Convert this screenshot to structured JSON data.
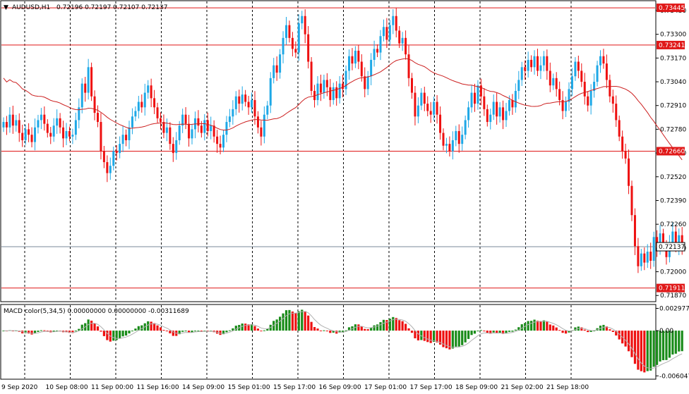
{
  "header": {
    "arrow": "▼",
    "symbol": "AUDUSD,H1",
    "ohlc": "0.72196 0.72197 0.72107 0.72137"
  },
  "macd_header": {
    "label": "MACD color(5,34,5) 0.00000000 0.00000000 -0.00311689"
  },
  "colors": {
    "bull": "#1ea8e6",
    "bear": "#ee1010",
    "ma": "#cc1f1f",
    "grid": "#000000",
    "level_line": "#e01818",
    "price_line": "#7a8a99",
    "macd_up": "#1a8c1a",
    "macd_down": "#ee1010",
    "signal": "#b0b0b0"
  },
  "chart_data": [
    {
      "type": "candlestick",
      "title": "AUDUSD,H1",
      "y_ticks": [
        "0.73430",
        "0.73300",
        "0.73170",
        "0.73040",
        "0.72910",
        "0.72780",
        "0.72650",
        "0.72520",
        "0.72390",
        "0.72260",
        "0.72130",
        "0.72000",
        "0.71870"
      ],
      "ylim": [
        0.7184,
        0.7348
      ],
      "x_tick_labels": [
        "9 Sep 2020",
        "10 Sep 08:00",
        "11 Sep 00:00",
        "11 Sep 16:00",
        "14 Sep 09:00",
        "15 Sep 01:00",
        "15 Sep 17:00",
        "16 Sep 09:00",
        "17 Sep 01:00",
        "17 Sep 17:00",
        "18 Sep 09:00",
        "21 Sep 02:00",
        "21 Sep 18:00"
      ],
      "horizontal_levels": [
        {
          "label": "0.73445",
          "value": 0.73445
        },
        {
          "label": "0.73241",
          "value": 0.73241
        },
        {
          "label": "0.72660",
          "value": 0.7266
        },
        {
          "label": "0.71911",
          "value": 0.71911
        }
      ],
      "current_price": {
        "label": "0.72137",
        "value": 0.72137
      },
      "grid": true,
      "close_series": [
        0.7282,
        0.7279,
        0.7286,
        0.728,
        0.7283,
        0.7276,
        0.7272,
        0.7278,
        0.7275,
        0.7271,
        0.7279,
        0.7283,
        0.7286,
        0.7281,
        0.7276,
        0.7274,
        0.728,
        0.7284,
        0.7279,
        0.7273,
        0.7277,
        0.7274,
        0.7275,
        0.7283,
        0.729,
        0.7303,
        0.7298,
        0.7312,
        0.7296,
        0.7287,
        0.7282,
        0.7266,
        0.726,
        0.7254,
        0.7258,
        0.7266,
        0.7265,
        0.727,
        0.7275,
        0.7272,
        0.7279,
        0.7285,
        0.7288,
        0.7293,
        0.729,
        0.7298,
        0.7302,
        0.7295,
        0.729,
        0.7284,
        0.7282,
        0.7276,
        0.7279,
        0.727,
        0.7265,
        0.7272,
        0.728,
        0.7286,
        0.7281,
        0.7273,
        0.7278,
        0.7284,
        0.728,
        0.7276,
        0.7283,
        0.7277,
        0.728,
        0.7274,
        0.727,
        0.7268,
        0.7275,
        0.7282,
        0.7285,
        0.7289,
        0.7296,
        0.7292,
        0.7297,
        0.7293,
        0.729,
        0.7294,
        0.7285,
        0.7279,
        0.7274,
        0.7286,
        0.7291,
        0.7306,
        0.7313,
        0.7309,
        0.7319,
        0.7328,
        0.7335,
        0.7328,
        0.7322,
        0.732,
        0.7336,
        0.734,
        0.733,
        0.7315,
        0.7299,
        0.7294,
        0.7303,
        0.7298,
        0.7305,
        0.7301,
        0.7294,
        0.7301,
        0.7295,
        0.7303,
        0.73,
        0.731,
        0.7318,
        0.7314,
        0.7321,
        0.7315,
        0.7307,
        0.73,
        0.7307,
        0.7316,
        0.7322,
        0.732,
        0.7329,
        0.7334,
        0.7327,
        0.7335,
        0.734,
        0.7332,
        0.7325,
        0.7328,
        0.7319,
        0.7306,
        0.7298,
        0.7285,
        0.7291,
        0.7298,
        0.7292,
        0.7288,
        0.7286,
        0.7293,
        0.7286,
        0.7276,
        0.7269,
        0.727,
        0.7266,
        0.7272,
        0.7277,
        0.727,
        0.7275,
        0.7283,
        0.729,
        0.7298,
        0.7292,
        0.7302,
        0.7296,
        0.7289,
        0.7282,
        0.7286,
        0.7293,
        0.7285,
        0.729,
        0.7283,
        0.7288,
        0.7294,
        0.729,
        0.7299,
        0.7305,
        0.7312,
        0.731,
        0.7316,
        0.7312,
        0.7318,
        0.731,
        0.7313,
        0.7318,
        0.731,
        0.7302,
        0.7306,
        0.73,
        0.7294,
        0.7288,
        0.7293,
        0.73,
        0.7307,
        0.7315,
        0.731,
        0.7304,
        0.7296,
        0.7291,
        0.7299,
        0.7304,
        0.7313,
        0.7318,
        0.7314,
        0.7305,
        0.7296,
        0.7292,
        0.7283,
        0.7274,
        0.7266,
        0.7262,
        0.7247,
        0.7231,
        0.7214,
        0.7203,
        0.721,
        0.7205,
        0.7211,
        0.7206,
        0.7219,
        0.7213,
        0.7221,
        0.7214,
        0.7208,
        0.7216,
        0.7222,
        0.7214,
        0.722,
        0.7213
      ],
      "ma_period_label": "",
      "x_tick_bar_index": [
        0,
        15,
        30,
        45,
        60,
        75,
        90,
        105,
        120,
        135,
        150,
        165,
        180
      ]
    },
    {
      "type": "bar",
      "title": "MACD color(5,34,5)",
      "y_ticks": [
        "0.0029770",
        "0.00",
        "-0.006047"
      ],
      "ylim": [
        -0.0064,
        0.0034
      ],
      "grid": true
    }
  ]
}
